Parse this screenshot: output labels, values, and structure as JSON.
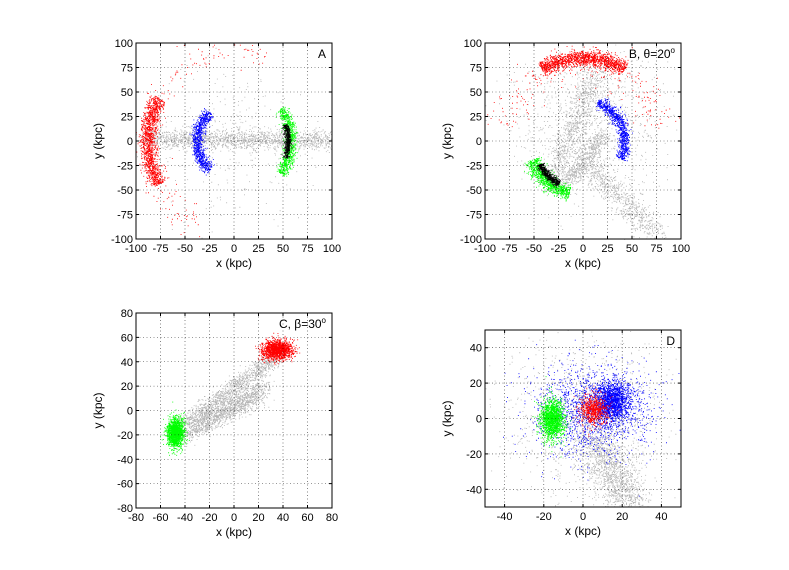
{
  "colors": {
    "gray": "#b4b4b4",
    "red": "#ff0000",
    "blue": "#0000ff",
    "green": "#00ff00",
    "black": "#000000"
  },
  "chart_data": [
    {
      "type": "scatter",
      "label": "A",
      "label_sup": "",
      "xlabel": "x (kpc)",
      "ylabel": "y (kpc)",
      "xlim": [
        -100,
        100
      ],
      "ylim": [
        -100,
        100
      ],
      "xticks": [
        -100,
        -75,
        -50,
        -25,
        0,
        25,
        50,
        75,
        100
      ],
      "yticks": [
        -100,
        -75,
        -50,
        -25,
        0,
        25,
        50,
        75,
        100
      ],
      "grid": true,
      "series": [
        {
          "name": "gray-bridge",
          "color": "gray",
          "shape": "band",
          "x0": -90,
          "y0": 3,
          "x1": 100,
          "y1": 1,
          "spread": 5,
          "count": 1600
        },
        {
          "name": "gray-halo",
          "color": "gray",
          "shape": "blob",
          "cx": 0,
          "cy": 0,
          "rx": 85,
          "ry": 80,
          "count": 250
        },
        {
          "name": "red-shell",
          "color": "red",
          "shape": "arc",
          "cx": 0,
          "cy": 0,
          "r": 88,
          "t0": 150,
          "t1": 210,
          "width": 4,
          "count": 1400
        },
        {
          "name": "red-scatter",
          "color": "red",
          "shape": "arc",
          "cx": 0,
          "cy": 0,
          "r": 92,
          "t0": 70,
          "t1": 250,
          "width": 8,
          "count": 200
        },
        {
          "name": "blue-shell",
          "color": "blue",
          "shape": "arc",
          "cx": 0,
          "cy": 0,
          "r": 38,
          "t0": 130,
          "t1": 230,
          "width": 3,
          "count": 900
        },
        {
          "name": "green-shell",
          "color": "green",
          "shape": "arc",
          "cx": 0,
          "cy": 0,
          "r": 58,
          "t0": -35,
          "t1": 35,
          "width": 3,
          "count": 800
        },
        {
          "name": "black-core",
          "color": "black",
          "shape": "arc",
          "cx": 0,
          "cy": 0,
          "r": 55,
          "t0": -18,
          "t1": 18,
          "width": 1.5,
          "count": 500
        }
      ]
    },
    {
      "type": "scatter",
      "label": "B, θ=20",
      "label_sup": "o",
      "xlabel": "x (kpc)",
      "ylabel": "y (kpc)",
      "xlim": [
        -100,
        100
      ],
      "ylim": [
        -100,
        100
      ],
      "xticks": [
        -100,
        -75,
        -50,
        -25,
        0,
        25,
        50,
        75,
        100
      ],
      "yticks": [
        -100,
        -75,
        -50,
        -25,
        0,
        25,
        50,
        75,
        100
      ],
      "grid": true,
      "series": [
        {
          "name": "gray-halo",
          "color": "gray",
          "shape": "blob",
          "cx": 5,
          "cy": 20,
          "rx": 75,
          "ry": 70,
          "count": 900
        },
        {
          "name": "gray-stream-1",
          "color": "gray",
          "shape": "band",
          "x0": -35,
          "y0": -45,
          "x1": 15,
          "y1": 70,
          "spread": 6,
          "count": 800
        },
        {
          "name": "gray-stream-2",
          "color": "gray",
          "shape": "band",
          "x0": -20,
          "y0": -45,
          "x1": 20,
          "y1": 5,
          "spread": 5,
          "count": 600
        },
        {
          "name": "gray-tail",
          "color": "gray",
          "shape": "band",
          "x0": 5,
          "y0": -25,
          "x1": 75,
          "y1": -95,
          "spread": 7,
          "count": 700
        },
        {
          "name": "red-cap",
          "color": "red",
          "shape": "arc",
          "cx": 0,
          "cy": 0,
          "r": 85,
          "t0": 60,
          "t1": 120,
          "width": 4,
          "count": 1500
        },
        {
          "name": "red-scatter",
          "color": "red",
          "shape": "arc",
          "cx": 0,
          "cy": 0,
          "r": 80,
          "t0": 10,
          "t1": 170,
          "width": 10,
          "count": 250
        },
        {
          "name": "blue-shell",
          "color": "blue",
          "shape": "arc",
          "cx": 0,
          "cy": 0,
          "r": 42,
          "t0": -25,
          "t1": 70,
          "width": 3,
          "count": 900
        },
        {
          "name": "green-shell",
          "color": "green",
          "shape": "arc",
          "cx": 0,
          "cy": 0,
          "r": 55,
          "t0": 200,
          "t1": 255,
          "width": 4,
          "count": 900
        },
        {
          "name": "black-core",
          "color": "black",
          "shape": "arc",
          "cx": 0,
          "cy": 0,
          "r": 50,
          "t0": 208,
          "t1": 240,
          "width": 2,
          "count": 500
        }
      ]
    },
    {
      "type": "scatter",
      "label": "C, β=30",
      "label_sup": "o",
      "xlabel": "x (kpc)",
      "ylabel": "y (kpc)",
      "xlim": [
        -80,
        80
      ],
      "ylim": [
        -80,
        80
      ],
      "xticks": [
        -80,
        -60,
        -40,
        -20,
        0,
        20,
        40,
        60,
        80
      ],
      "yticks": [
        -80,
        -60,
        -40,
        -20,
        0,
        20,
        40,
        60,
        80
      ],
      "grid": true,
      "series": [
        {
          "name": "gray-bridge-1",
          "color": "gray",
          "shape": "band",
          "x0": -45,
          "y0": -15,
          "x1": 35,
          "y1": 45,
          "spread": 4,
          "count": 1200
        },
        {
          "name": "gray-bridge-2",
          "color": "gray",
          "shape": "band",
          "x0": -40,
          "y0": -20,
          "x1": 25,
          "y1": 20,
          "spread": 4,
          "count": 900
        },
        {
          "name": "gray-bridge-3",
          "color": "gray",
          "shape": "band",
          "x0": -30,
          "y0": -10,
          "x1": 20,
          "y1": 10,
          "spread": 5,
          "count": 500
        },
        {
          "name": "red-cap",
          "color": "red",
          "shape": "blob",
          "cx": 35,
          "cy": 50,
          "rx": 12,
          "ry": 8,
          "count": 1500
        },
        {
          "name": "green-cap",
          "color": "green",
          "shape": "blob",
          "cx": -48,
          "cy": -18,
          "rx": 7,
          "ry": 12,
          "count": 1500
        }
      ]
    },
    {
      "type": "scatter",
      "label": "D",
      "label_sup": "",
      "xlabel": "x (kpc)",
      "ylabel": "y (kpc)",
      "xlim": [
        -50,
        50
      ],
      "ylim": [
        -50,
        50
      ],
      "xticks": [
        -40,
        -20,
        0,
        20,
        40
      ],
      "yticks": [
        -40,
        -20,
        0,
        20,
        40
      ],
      "grid": true,
      "series": [
        {
          "name": "gray-halo",
          "color": "gray",
          "shape": "blob",
          "cx": 0,
          "cy": 0,
          "rx": 40,
          "ry": 40,
          "count": 1200
        },
        {
          "name": "gray-tail",
          "color": "gray",
          "shape": "band",
          "x0": 5,
          "y0": -10,
          "x1": 25,
          "y1": -50,
          "spread": 6,
          "count": 1300
        },
        {
          "name": "blue-halo",
          "color": "blue",
          "shape": "blob",
          "cx": 5,
          "cy": 5,
          "rx": 30,
          "ry": 25,
          "count": 1500
        },
        {
          "name": "blue-core",
          "color": "blue",
          "shape": "blob",
          "cx": 15,
          "cy": 10,
          "rx": 9,
          "ry": 11,
          "count": 1500
        },
        {
          "name": "red-core",
          "color": "red",
          "shape": "blob",
          "cx": 5,
          "cy": 5,
          "rx": 7,
          "ry": 8,
          "count": 700
        },
        {
          "name": "green-core",
          "color": "green",
          "shape": "blob",
          "cx": -16,
          "cy": 0,
          "rx": 6,
          "ry": 11,
          "count": 1500
        }
      ]
    }
  ]
}
